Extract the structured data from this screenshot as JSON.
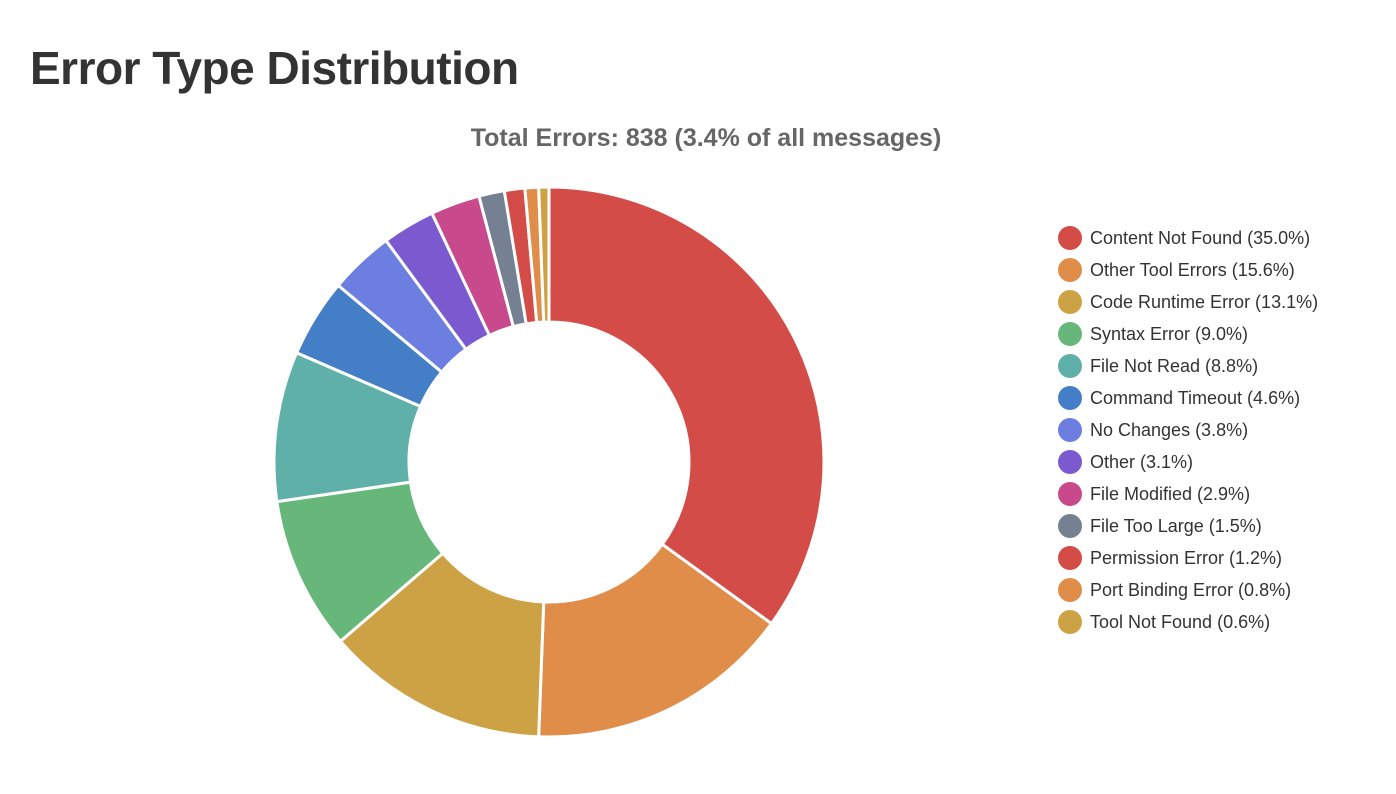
{
  "page": {
    "title": "Error Type Distribution"
  },
  "chart_data": {
    "type": "pie",
    "variant": "doughnut",
    "subtitle": "Total Errors: 838 (3.4% of all messages)",
    "legend_position": "right",
    "slices": [
      {
        "label": "Content Not Found (35.0%)",
        "value": 35.0,
        "color": "#d44c47"
      },
      {
        "label": "Other Tool Errors (15.6%)",
        "value": 15.6,
        "color": "#e08d4a"
      },
      {
        "label": "Code Runtime Error (13.1%)",
        "value": 13.1,
        "color": "#cda244"
      },
      {
        "label": "Syntax Error (9.0%)",
        "value": 9.0,
        "color": "#67b77b"
      },
      {
        "label": "File Not Read (8.8%)",
        "value": 8.8,
        "color": "#5fb0a9"
      },
      {
        "label": "Command Timeout (4.6%)",
        "value": 4.6,
        "color": "#447ec6"
      },
      {
        "label": "No Changes (3.8%)",
        "value": 3.8,
        "color": "#6c7fe0"
      },
      {
        "label": "Other (3.1%)",
        "value": 3.1,
        "color": "#7b59cf"
      },
      {
        "label": "File Modified (2.9%)",
        "value": 2.9,
        "color": "#c84a8c"
      },
      {
        "label": "File Too Large (1.5%)",
        "value": 1.5,
        "color": "#758193"
      },
      {
        "label": "Permission Error (1.2%)",
        "value": 1.2,
        "color": "#d44c47"
      },
      {
        "label": "Port Binding Error (0.8%)",
        "value": 0.8,
        "color": "#e08d4a"
      },
      {
        "label": "Tool Not Found (0.6%)",
        "value": 0.6,
        "color": "#cda244"
      }
    ]
  }
}
